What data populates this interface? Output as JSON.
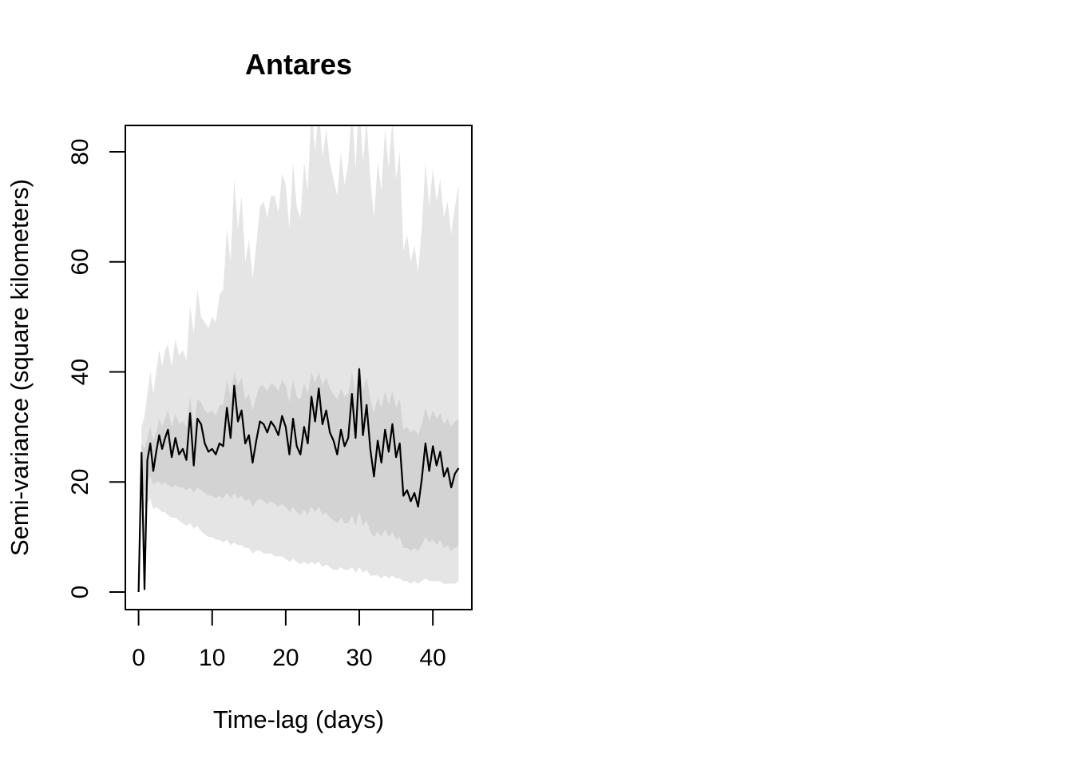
{
  "chart_data": {
    "type": "line",
    "title": "Antares",
    "xlabel": "Time-lag (days)",
    "ylabel": "Semi-variance (square kilometers)",
    "xlim": [
      -1.8,
      45.3
    ],
    "ylim": [
      -3.2,
      84.8
    ],
    "x_ticks": [
      0,
      10,
      20,
      30,
      40
    ],
    "y_ticks": [
      0,
      20,
      40,
      60,
      80
    ],
    "grid": false,
    "colors": {
      "line": "#000000",
      "inner_band": "#d3d3d3",
      "outer_band": "#e5e5e5"
    },
    "series": [
      {
        "x": [
          0,
          0.4,
          0.8,
          1.2,
          1.6,
          2.0,
          2.4,
          2.8,
          3.2,
          3.6,
          4.0,
          4.5,
          5.0,
          5.5,
          6.0,
          6.5,
          7.0,
          7.5,
          8.0,
          8.5,
          9.0,
          9.5,
          10.0,
          10.5,
          11.0,
          11.5,
          12.0,
          12.5,
          13.0,
          13.5,
          14.0,
          14.5,
          15.0,
          15.5,
          16.0,
          16.5,
          17.0,
          17.5,
          18.0,
          18.5,
          19.0,
          19.5,
          20.0,
          20.5,
          21.0,
          21.5,
          22.0,
          22.5,
          23.0,
          23.5,
          24.0,
          24.5,
          25.0,
          25.5,
          26.0,
          26.5,
          27.0,
          27.5,
          28.0,
          28.5,
          29.0,
          29.5,
          30.0,
          30.5,
          31.0,
          31.5,
          32.0,
          32.5,
          33.0,
          33.5,
          34.0,
          34.5,
          35.0,
          35.5,
          36.0,
          36.5,
          37.0,
          37.5,
          38.0,
          38.5,
          39.0,
          39.5,
          40.0,
          40.5,
          41.0,
          41.5,
          42.0,
          42.5,
          43.0,
          43.5
        ],
        "y": [
          0,
          25.3,
          0.5,
          24.0,
          27.0,
          22.0,
          25.5,
          28.5,
          26.0,
          28.0,
          29.5,
          24.5,
          28.0,
          25.0,
          26.0,
          24.0,
          32.5,
          23.0,
          31.5,
          30.5,
          27.0,
          25.5,
          26.0,
          25.0,
          27.0,
          26.5,
          33.5,
          28.0,
          37.5,
          31.0,
          33.0,
          27.0,
          28.5,
          23.5,
          27.5,
          31.0,
          30.5,
          29.0,
          31.0,
          30.0,
          28.5,
          32.0,
          30.0,
          25.0,
          31.5,
          26.5,
          25.0,
          30.0,
          27.0,
          35.5,
          31.0,
          37.0,
          30.5,
          33.0,
          29.0,
          27.5,
          25.0,
          29.5,
          26.5,
          28.0,
          36.0,
          28.0,
          40.5,
          28.5,
          34.0,
          26.0,
          21.0,
          27.5,
          23.5,
          29.5,
          25.5,
          30.5,
          24.5,
          27.0,
          17.5,
          18.5,
          16.5,
          18.0,
          15.5,
          20.5,
          27.0,
          22.0,
          26.5,
          23.0,
          25.5,
          21.0,
          22.5,
          19.0,
          21.5,
          22.5
        ],
        "inner_lower": [
          0,
          20.0,
          18.0,
          20.0,
          21.0,
          19.5,
          20.0,
          20.0,
          19.5,
          20.0,
          19.5,
          19.0,
          19.5,
          19.0,
          19.0,
          18.5,
          19.0,
          18.0,
          19.0,
          18.5,
          18.0,
          17.5,
          17.5,
          17.0,
          17.5,
          17.0,
          18.0,
          17.0,
          18.0,
          17.0,
          17.5,
          16.5,
          17.0,
          15.5,
          16.5,
          17.0,
          16.5,
          16.0,
          16.5,
          16.0,
          15.5,
          16.0,
          15.5,
          14.5,
          15.5,
          14.5,
          14.0,
          15.0,
          14.0,
          15.5,
          14.5,
          15.5,
          14.0,
          14.5,
          13.5,
          13.0,
          12.5,
          13.5,
          12.5,
          12.5,
          14.0,
          12.0,
          14.5,
          12.0,
          13.0,
          11.0,
          10.0,
          11.0,
          10.0,
          11.5,
          10.0,
          11.0,
          9.5,
          10.0,
          8.0,
          8.0,
          7.5,
          8.0,
          7.5,
          8.5,
          10.0,
          9.0,
          9.5,
          8.5,
          9.5,
          8.0,
          8.5,
          7.5,
          8.0,
          8.5
        ],
        "inner_upper": [
          0,
          27.0,
          26.0,
          28.0,
          30.0,
          27.5,
          29.0,
          31.5,
          30.0,
          31.5,
          33.0,
          30.0,
          32.5,
          30.5,
          31.0,
          30.0,
          35.5,
          30.0,
          35.0,
          34.5,
          33.0,
          32.5,
          33.0,
          32.0,
          34.0,
          34.0,
          38.5,
          35.5,
          40.0,
          37.5,
          39.0,
          35.0,
          36.0,
          33.0,
          35.5,
          37.5,
          37.5,
          36.5,
          38.0,
          37.5,
          36.5,
          38.5,
          37.5,
          34.5,
          38.5,
          35.5,
          35.0,
          38.0,
          36.0,
          40.0,
          38.0,
          40.0,
          37.5,
          39.0,
          37.0,
          36.0,
          35.0,
          37.0,
          35.5,
          36.0,
          40.0,
          36.0,
          41.5,
          36.5,
          39.0,
          35.0,
          32.5,
          35.5,
          33.5,
          36.5,
          34.0,
          36.5,
          33.5,
          35.0,
          29.5,
          30.0,
          29.0,
          29.5,
          28.5,
          30.5,
          33.5,
          31.0,
          33.0,
          31.5,
          32.5,
          30.5,
          31.5,
          30.0,
          31.0,
          31.5
        ],
        "outer_lower": [
          0,
          18.0,
          15.0,
          16.0,
          17.0,
          15.0,
          15.5,
          15.0,
          14.5,
          14.5,
          14.0,
          13.5,
          13.5,
          13.0,
          12.5,
          12.0,
          12.5,
          11.5,
          12.0,
          11.0,
          10.5,
          10.0,
          10.0,
          9.5,
          9.5,
          9.0,
          9.5,
          8.5,
          9.0,
          8.5,
          8.5,
          8.0,
          8.0,
          7.0,
          7.5,
          7.5,
          7.0,
          7.0,
          7.0,
          6.5,
          6.5,
          6.5,
          6.0,
          5.5,
          6.0,
          5.5,
          5.0,
          5.5,
          5.0,
          5.5,
          5.0,
          5.5,
          4.5,
          5.0,
          4.5,
          4.0,
          4.0,
          4.5,
          4.0,
          4.0,
          4.5,
          3.5,
          4.5,
          3.5,
          4.0,
          3.0,
          3.0,
          3.0,
          2.5,
          3.0,
          2.5,
          3.0,
          2.5,
          2.5,
          2.0,
          2.0,
          1.5,
          2.0,
          1.5,
          2.0,
          2.5,
          2.0,
          2.0,
          2.0,
          2.0,
          1.5,
          1.5,
          1.5,
          1.5,
          2.0
        ],
        "outer_upper": [
          0,
          30.0,
          32.0,
          36.0,
          40.0,
          36.0,
          40.0,
          44.0,
          41.0,
          44.0,
          45.0,
          41.0,
          46.0,
          43.0,
          44.0,
          42.0,
          52.0,
          47.0,
          55.0,
          50.0,
          49.0,
          48.0,
          50.0,
          49.0,
          54.0,
          55.0,
          66.0,
          60.0,
          75.0,
          66.0,
          72.0,
          60.0,
          64.0,
          57.0,
          63.0,
          70.0,
          71.0,
          68.0,
          72.0,
          72.0,
          69.0,
          76.0,
          74.0,
          66.0,
          78.0,
          70.0,
          68.0,
          78.0,
          73.0,
          88.0,
          80.0,
          88.0,
          79.0,
          84.0,
          78.0,
          75.0,
          72.0,
          80.0,
          74.0,
          78.0,
          88.0,
          77.0,
          90.0,
          78.0,
          86.0,
          75.0,
          68.0,
          78.0,
          73.0,
          84.0,
          77.0,
          86.0,
          75.0,
          80.0,
          62.0,
          65.0,
          60.0,
          63.0,
          58.0,
          66.0,
          78.0,
          70.0,
          77.0,
          71.0,
          75.0,
          68.0,
          71.0,
          65.0,
          70.0,
          74.0
        ]
      }
    ]
  }
}
